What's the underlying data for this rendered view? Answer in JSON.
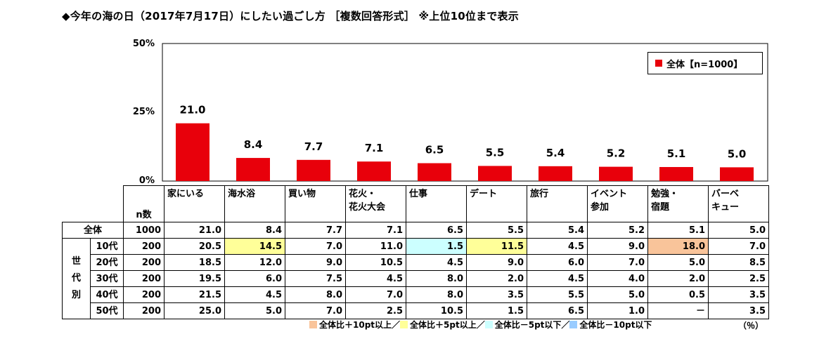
{
  "title": "◆今年の海の日（2017年7月17日）にしたい過ごし方 ［複数回答形式］ ※上位10位まで表示",
  "colors": {
    "bar": "#e8000b",
    "plus10": "#f9c49a",
    "plus5": "#ffff99",
    "minus5": "#ccffff",
    "minus10": "#99ccff"
  },
  "chart_data": {
    "type": "bar",
    "categories": [
      "家にいる",
      "海水浴",
      "買い物",
      "花火・花火大会",
      "仕事",
      "デート",
      "旅行",
      "イベント参加",
      "勉強・宿題",
      "バーベキュー"
    ],
    "series": [
      {
        "name": "全体【n=1000】",
        "values": [
          21.0,
          8.4,
          7.7,
          7.1,
          6.5,
          5.5,
          5.4,
          5.2,
          5.1,
          5.0
        ]
      }
    ],
    "data_labels": [
      "21.0",
      "8.4",
      "7.7",
      "7.1",
      "6.5",
      "5.5",
      "5.4",
      "5.2",
      "5.1",
      "5.0"
    ],
    "yticks": [
      "50%",
      "25%",
      "0%"
    ],
    "ylim": [
      0,
      50
    ],
    "legend": "top-right"
  },
  "table": {
    "n_label": "n数",
    "side_label": [
      "世",
      "代",
      "別"
    ],
    "headers": [
      [
        "家にいる",
        ""
      ],
      [
        "海水浴",
        ""
      ],
      [
        "買い物",
        ""
      ],
      [
        "花火・",
        "花火大会"
      ],
      [
        "仕事",
        ""
      ],
      [
        "デート",
        ""
      ],
      [
        "旅行",
        ""
      ],
      [
        "イベント",
        "参加"
      ],
      [
        "勉強・",
        "宿題"
      ],
      [
        "バーベ",
        "キュー"
      ]
    ],
    "rows": [
      {
        "label": "全体",
        "n": "1000",
        "values": [
          "21.0",
          "8.4",
          "7.7",
          "7.1",
          "6.5",
          "5.5",
          "5.4",
          "5.2",
          "5.1",
          "5.0"
        ],
        "highlight": [
          "",
          "",
          "",
          "",
          "",
          "",
          "",
          "",
          "",
          ""
        ]
      },
      {
        "label": "10代",
        "n": "200",
        "values": [
          "20.5",
          "14.5",
          "7.0",
          "11.0",
          "1.5",
          "11.5",
          "4.5",
          "9.0",
          "18.0",
          "7.0"
        ],
        "highlight": [
          "",
          "plus5",
          "",
          "",
          "minus5",
          "plus5",
          "",
          "",
          "plus10",
          ""
        ]
      },
      {
        "label": "20代",
        "n": "200",
        "values": [
          "18.5",
          "12.0",
          "9.0",
          "10.5",
          "4.5",
          "9.0",
          "6.0",
          "7.0",
          "5.0",
          "8.5"
        ],
        "highlight": [
          "",
          "",
          "",
          "",
          "",
          "",
          "",
          "",
          "",
          ""
        ]
      },
      {
        "label": "30代",
        "n": "200",
        "values": [
          "19.5",
          "6.0",
          "7.5",
          "4.5",
          "8.0",
          "2.0",
          "4.5",
          "4.0",
          "2.0",
          "2.5"
        ],
        "highlight": [
          "",
          "",
          "",
          "",
          "",
          "",
          "",
          "",
          "",
          ""
        ]
      },
      {
        "label": "40代",
        "n": "200",
        "values": [
          "21.5",
          "4.5",
          "8.0",
          "7.0",
          "8.0",
          "3.5",
          "5.5",
          "5.0",
          "0.5",
          "3.5"
        ],
        "highlight": [
          "",
          "",
          "",
          "",
          "",
          "",
          "",
          "",
          "",
          ""
        ]
      },
      {
        "label": "50代",
        "n": "200",
        "values": [
          "25.0",
          "5.0",
          "7.0",
          "2.5",
          "10.5",
          "1.5",
          "6.5",
          "1.0",
          "－",
          "3.5"
        ],
        "highlight": [
          "",
          "",
          "",
          "",
          "",
          "",
          "",
          "",
          "",
          ""
        ]
      }
    ]
  },
  "notes": [
    {
      "key": "plus10",
      "label": "全体比＋10pt以上／"
    },
    {
      "key": "plus5",
      "label": "全体比＋5pt以上／"
    },
    {
      "key": "minus5",
      "label": "全体比－5pt以下／"
    },
    {
      "key": "minus10",
      "label": "全体比－10pt以下"
    }
  ],
  "unit": "（％）"
}
